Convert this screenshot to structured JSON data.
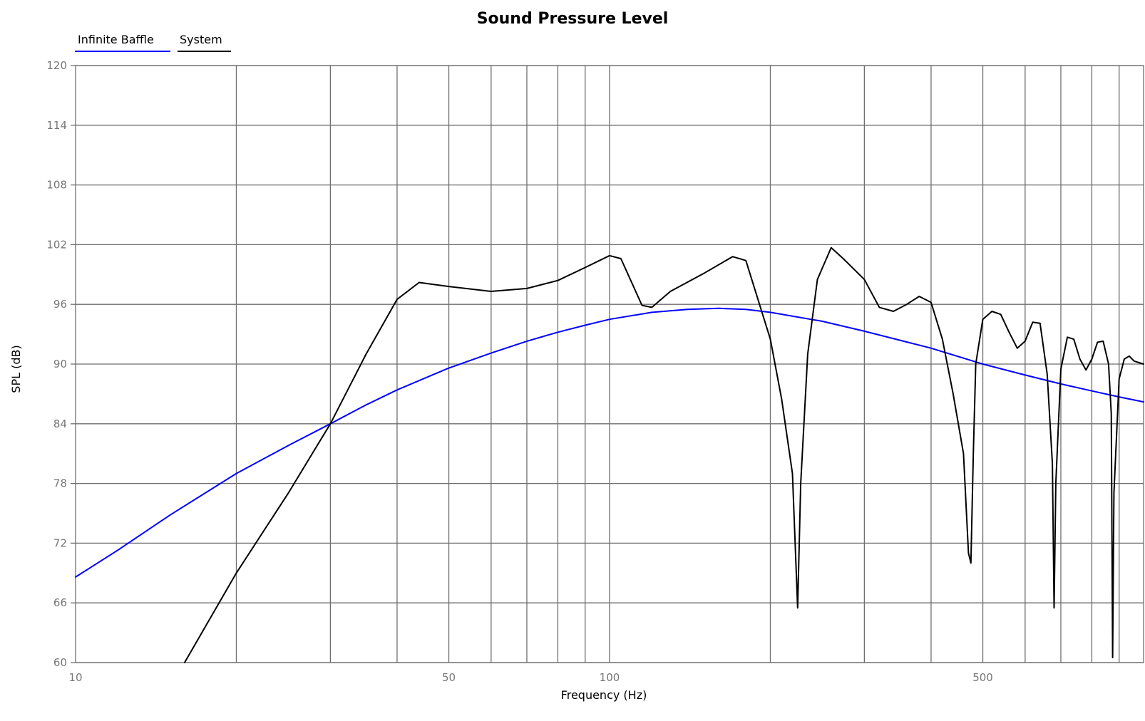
{
  "chart_data": {
    "type": "line",
    "title": "Sound Pressure Level",
    "xlabel": "Frequency (Hz)",
    "ylabel": "SPL (dB)",
    "x_scale": "log",
    "xlim": [
      10,
      1000
    ],
    "ylim": [
      60,
      120
    ],
    "x_tick_labels": [
      {
        "value": 10,
        "label": "10"
      },
      {
        "value": 50,
        "label": "50"
      },
      {
        "value": 100,
        "label": "100"
      },
      {
        "value": 500,
        "label": "500"
      }
    ],
    "x_grid": [
      20,
      30,
      40,
      50,
      60,
      70,
      80,
      90,
      100,
      200,
      300,
      400,
      500,
      600,
      700,
      800,
      900
    ],
    "y_ticks": [
      60,
      66,
      72,
      78,
      84,
      90,
      96,
      102,
      108,
      114,
      120
    ],
    "grid": true,
    "legend_position": "top-left",
    "series": [
      {
        "name": "Infinite Baffle",
        "color": "#0000ff",
        "x": [
          10,
          12,
          15,
          20,
          25,
          30,
          35,
          40,
          50,
          60,
          70,
          80,
          90,
          100,
          120,
          140,
          160,
          180,
          200,
          250,
          300,
          400,
          500,
          600,
          700,
          800,
          900,
          1000
        ],
        "y": [
          68.6,
          71.3,
          74.8,
          79.0,
          81.8,
          84.0,
          85.9,
          87.4,
          89.6,
          91.1,
          92.3,
          93.2,
          93.9,
          94.5,
          95.2,
          95.5,
          95.6,
          95.5,
          95.2,
          94.3,
          93.3,
          91.6,
          90.0,
          88.9,
          88.0,
          87.3,
          86.7,
          86.2
        ]
      },
      {
        "name": "System",
        "color": "#000000",
        "x": [
          16,
          20,
          25,
          30,
          35,
          40,
          44,
          50,
          60,
          70,
          80,
          90,
          100,
          105,
          110,
          115,
          120,
          130,
          150,
          170,
          180,
          200,
          210,
          220,
          225,
          228,
          235,
          245,
          260,
          275,
          300,
          320,
          340,
          360,
          380,
          400,
          420,
          440,
          460,
          470,
          475,
          480,
          485,
          500,
          520,
          540,
          560,
          580,
          600,
          620,
          640,
          660,
          675,
          680,
          685,
          700,
          720,
          740,
          760,
          780,
          800,
          820,
          840,
          860,
          870,
          875,
          880,
          900,
          920,
          940,
          960,
          1000
        ],
        "y": [
          60,
          69,
          77,
          84,
          91,
          96.5,
          98.2,
          97.8,
          97.3,
          97.6,
          98.4,
          99.7,
          100.9,
          100.6,
          98.2,
          95.9,
          95.7,
          97.3,
          99.1,
          100.8,
          100.4,
          92.5,
          86.5,
          79.0,
          65.5,
          78.0,
          91.0,
          98.5,
          101.7,
          100.5,
          98.5,
          95.7,
          95.3,
          96.0,
          96.8,
          96.2,
          92.5,
          87.0,
          81.0,
          71.0,
          70.0,
          81.0,
          90.0,
          94.5,
          95.3,
          95.0,
          93.2,
          91.6,
          92.3,
          94.2,
          94.1,
          89.0,
          80.0,
          65.5,
          78.0,
          89.5,
          92.7,
          92.5,
          90.5,
          89.4,
          90.5,
          92.2,
          92.3,
          90.0,
          85.0,
          60.5,
          77.0,
          88.5,
          90.5,
          90.8,
          90.3,
          90.0
        ]
      }
    ]
  }
}
